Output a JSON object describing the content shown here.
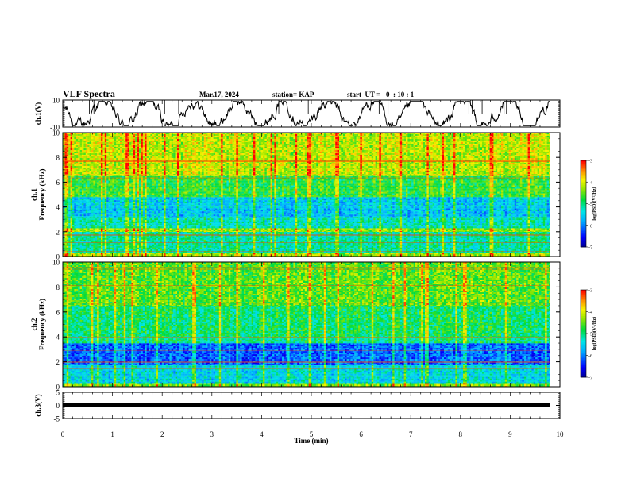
{
  "header": {
    "title": "VLF Spectra",
    "date": "Mar.17, 2024",
    "station": "station= KAP",
    "start_ut": "start  UT =   0  : 10 : 1"
  },
  "chart_data": [
    {
      "type": "line",
      "ylabel": "ch.1(V)",
      "ylim": [
        -10,
        10
      ],
      "yticks": [
        "10",
        "-10"
      ],
      "xlim": [
        0,
        10
      ],
      "x_end": 9.8,
      "description": "time series"
    },
    {
      "type": "heatmap",
      "ylabel": "ch.1\nFrequency (kHz)",
      "ylim": [
        0,
        10
      ],
      "yticks": [
        "0",
        "2",
        "4",
        "6",
        "8",
        "10"
      ],
      "xlim": [
        0,
        10
      ],
      "x_end": 9.8,
      "colorbar": {
        "label": "log(PSD)(V²/Hz)",
        "ticks": [
          "-3",
          "-4",
          "-5",
          "-6",
          "-7"
        ],
        "range": [
          -7,
          -3
        ]
      },
      "bands": [
        {
          "f": [
            0,
            0.3
          ],
          "level": -4.2
        },
        {
          "f": [
            0.3,
            2.0
          ],
          "level": -5.1
        },
        {
          "f": [
            2.0,
            2.3
          ],
          "level": -4.3
        },
        {
          "f": [
            2.3,
            3.2
          ],
          "level": -5.2
        },
        {
          "f": [
            3.2,
            3.9
          ],
          "level": -5.6
        },
        {
          "f": [
            3.9,
            4.8
          ],
          "level": -5.5
        },
        {
          "f": [
            4.8,
            6.5
          ],
          "level": -4.7
        },
        {
          "f": [
            6.5,
            10
          ],
          "level": -4.1
        }
      ]
    },
    {
      "type": "heatmap",
      "ylabel": "ch.2\nFrequency (kHz)",
      "ylim": [
        0,
        10
      ],
      "yticks": [
        "0",
        "2",
        "4",
        "6",
        "8",
        "10"
      ],
      "xlim": [
        0,
        10
      ],
      "x_end": 9.8,
      "colorbar": {
        "label": "log(PSD)(V²/Hz)",
        "ticks": [
          "-3",
          "-4",
          "-5",
          "-6",
          "-7"
        ],
        "range": [
          -7,
          -3
        ]
      },
      "bands": [
        {
          "f": [
            0,
            0.3
          ],
          "level": -4.4
        },
        {
          "f": [
            0.3,
            1.8
          ],
          "level": -5.4
        },
        {
          "f": [
            1.8,
            3.5
          ],
          "level": -6.1
        },
        {
          "f": [
            3.5,
            4.0
          ],
          "level": -5.0
        },
        {
          "f": [
            4.0,
            6.5
          ],
          "level": -4.9
        },
        {
          "f": [
            6.5,
            10
          ],
          "level": -4.5
        }
      ]
    },
    {
      "type": "line",
      "ylabel": "ch.3(V)",
      "ylim": [
        -5,
        5
      ],
      "yticks": [
        "5",
        "0",
        "-5"
      ],
      "xlim": [
        0,
        10
      ],
      "x_end": 9.8,
      "constant_value": 0
    }
  ],
  "xaxis": {
    "label": "Time (min)",
    "ticks": [
      "0",
      "1",
      "2",
      "3",
      "4",
      "5",
      "6",
      "7",
      "8",
      "9",
      "10"
    ]
  }
}
